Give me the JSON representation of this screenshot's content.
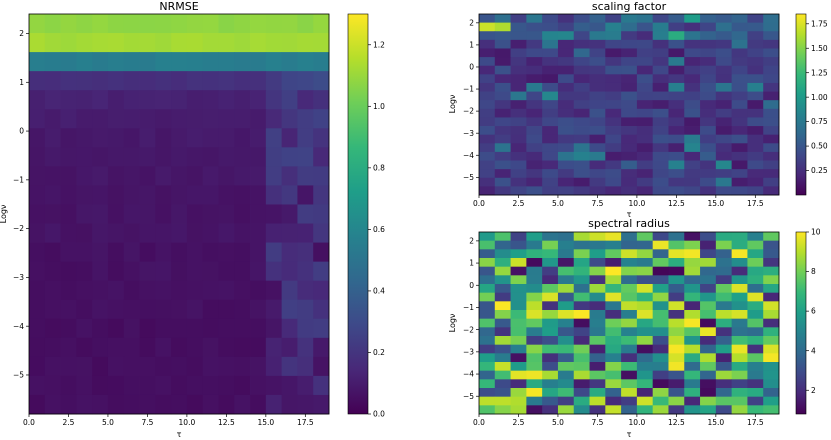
{
  "colormap": [
    "#440154",
    "#482878",
    "#3e4989",
    "#31688e",
    "#26828e",
    "#1f9e89",
    "#35b779",
    "#6ece58",
    "#b5de2b",
    "#fde725"
  ],
  "chart_data": [
    {
      "id": "nrmse",
      "type": "heatmap",
      "title": "NRMSE",
      "xlabel": "τ",
      "ylabel": "Logν",
      "xlim": [
        0,
        19
      ],
      "ylim": [
        -5.8,
        2.4
      ],
      "n_cols": 19,
      "n_rows": 21,
      "x_ticks": [
        0,
        2.5,
        5,
        7.5,
        10,
        12.5,
        15,
        17.5
      ],
      "x_tick_labels": [
        "0.0",
        "2.5",
        "5.0",
        "7.5",
        "10.0",
        "12.5",
        "15.0",
        "17.5"
      ],
      "y_ticks": [
        2,
        1,
        0,
        -1,
        -2,
        -3,
        -4,
        -5
      ],
      "y_tick_labels": [
        "2",
        "1",
        "0",
        "−1",
        "−2",
        "−3",
        "−4",
        "−5"
      ],
      "colorbar": {
        "vmin": 0,
        "vmax": 1.3,
        "ticks": [
          0,
          0.2,
          0.4,
          0.6,
          0.8,
          1.0,
          1.2
        ],
        "tick_labels": [
          "0.0",
          "0.2",
          "0.4",
          "0.6",
          "0.8",
          "1.0",
          "1.2"
        ]
      },
      "value_range": [
        0,
        1.3
      ],
      "row_values_top_to_bottom": [
        1.08,
        1.12,
        0.55,
        0.18,
        0.12,
        0.1,
        0.09,
        0.08,
        0.08,
        0.07,
        0.07,
        0.07,
        0.06,
        0.06,
        0.06,
        0.06,
        0.05,
        0.05,
        0.05,
        0.05,
        0.05
      ]
    },
    {
      "id": "scaling",
      "type": "heatmap",
      "title": "scaling factor",
      "xlabel": "τ",
      "ylabel": "Logν",
      "xlim": [
        0,
        19
      ],
      "ylim": [
        -5.8,
        2.4
      ],
      "n_cols": 19,
      "n_rows": 21,
      "x_ticks": [
        0,
        2.5,
        5,
        7.5,
        10,
        12.5,
        15,
        17.5
      ],
      "x_tick_labels": [
        "0.0",
        "2.5",
        "5.0",
        "7.5",
        "10.0",
        "12.5",
        "15.0",
        "17.5"
      ],
      "y_ticks": [
        2,
        1,
        0,
        -1,
        -2,
        -3,
        -4,
        -5
      ],
      "y_tick_labels": [
        "2",
        "1",
        "0",
        "−1",
        "−2",
        "−3",
        "−4",
        "−5"
      ],
      "colorbar": {
        "vmin": 0,
        "vmax": 1.85,
        "ticks": [
          0.25,
          0.5,
          0.75,
          1.0,
          1.25,
          1.5,
          1.75
        ],
        "tick_labels": [
          "0.25",
          "0.50",
          "0.75",
          "1.00",
          "1.25",
          "1.50",
          "1.75"
        ]
      },
      "value_range": [
        0.05,
        1.8
      ]
    },
    {
      "id": "spectral",
      "type": "heatmap",
      "title": "spectral radius",
      "xlabel": "τ",
      "ylabel": "Logν",
      "xlim": [
        0,
        19
      ],
      "ylim": [
        -5.8,
        2.4
      ],
      "n_cols": 19,
      "n_rows": 21,
      "x_ticks": [
        0,
        2.5,
        5,
        7.5,
        10,
        12.5,
        15,
        17.5
      ],
      "x_tick_labels": [
        "0.0",
        "2.5",
        "5.0",
        "7.5",
        "10.0",
        "12.5",
        "15.0",
        "17.5"
      ],
      "y_ticks": [
        2,
        1,
        0,
        -1,
        -2,
        -3,
        -4,
        -5
      ],
      "y_tick_labels": [
        "2",
        "1",
        "0",
        "−1",
        "−2",
        "−3",
        "−4",
        "−5"
      ],
      "colorbar": {
        "vmin": 0.8,
        "vmax": 10,
        "ticks": [
          2,
          4,
          6,
          8,
          10
        ],
        "tick_labels": [
          "2",
          "4",
          "6",
          "8",
          "10"
        ]
      },
      "value_range": [
        0.8,
        10
      ]
    }
  ]
}
